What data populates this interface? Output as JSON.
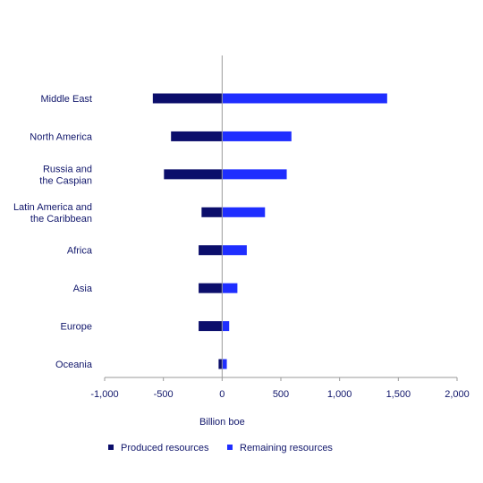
{
  "chart_data": {
    "type": "bar",
    "orientation": "horizontal",
    "categories": [
      "Middle East",
      "North America",
      "Russia and\nthe Caspian",
      "Latin America and\nthe Caribbean",
      "Africa",
      "Asia",
      "Europe",
      "Oceania"
    ],
    "series": [
      {
        "name": "Produced resources",
        "values": [
          -590,
          -435,
          -495,
          -175,
          -200,
          -200,
          -200,
          -30
        ],
        "color": "#0b0e6b"
      },
      {
        "name": "Remaining resources",
        "values": [
          1405,
          590,
          550,
          365,
          210,
          130,
          60,
          40
        ],
        "color": "#1f2eff"
      }
    ],
    "xlabel": "Billion boe",
    "ylabel": "",
    "xlim": [
      -1000,
      2000
    ],
    "xticks": [
      -1000,
      -500,
      0,
      500,
      1000,
      1500,
      2000
    ],
    "xtick_labels": [
      "-1,000",
      "-500",
      "0",
      "500",
      "1,000",
      "1,500",
      "2,000"
    ],
    "legend_position": "bottom",
    "grid": false,
    "zero_line_color": "#9a9a9a"
  }
}
